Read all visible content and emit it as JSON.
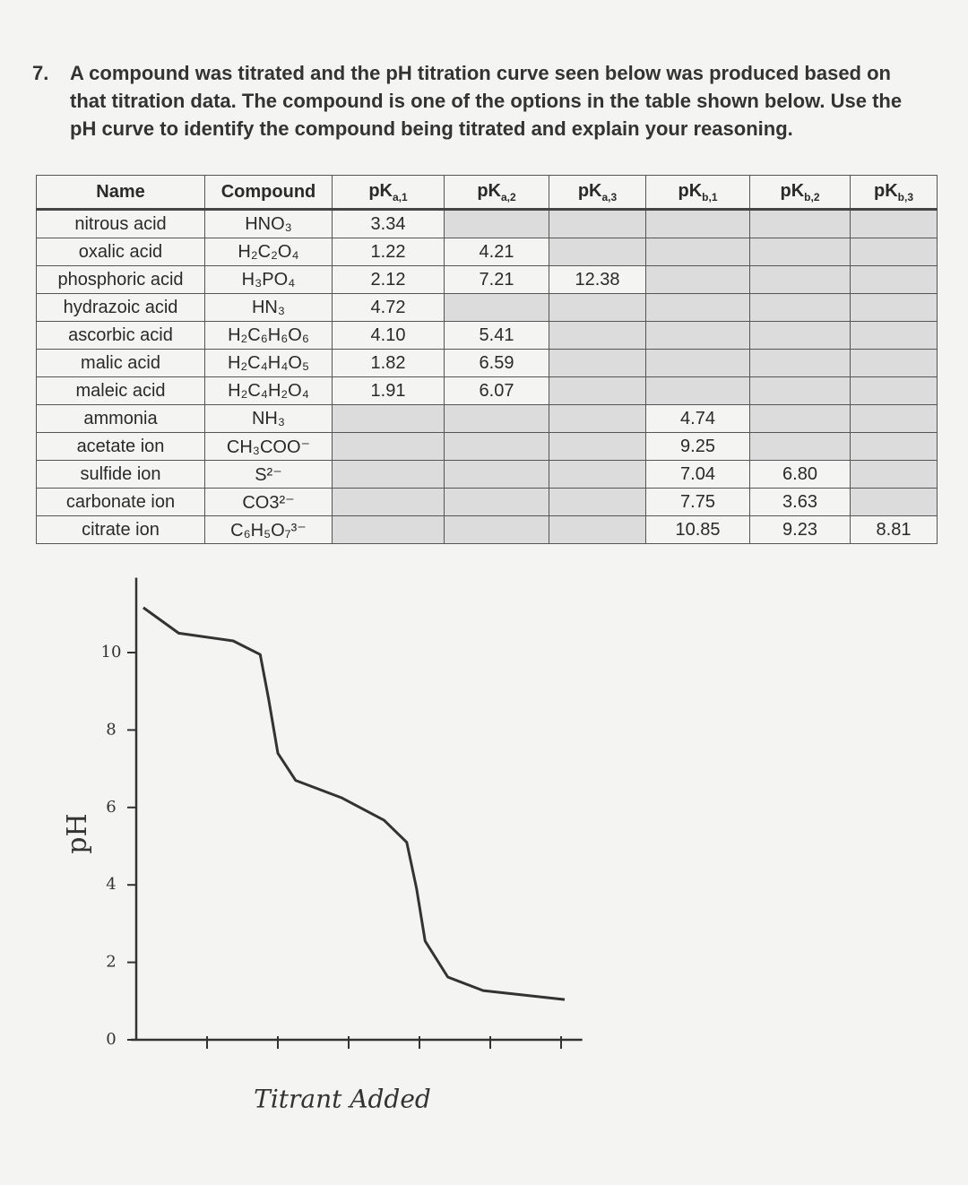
{
  "question": {
    "number": "7.",
    "text": "A compound was titrated and the pH titration curve seen below was produced based on that titration data. The compound is one of the options in the table shown below. Use the pH curve to identify the compound being titrated and explain your reasoning."
  },
  "table": {
    "headers": [
      "Name",
      "Compound",
      {
        "base": "pK",
        "sub": "a,1"
      },
      {
        "base": "pK",
        "sub": "a,2"
      },
      {
        "base": "pK",
        "sub": "a,3"
      },
      {
        "base": "pK",
        "sub": "b,1"
      },
      {
        "base": "pK",
        "sub": "b,2"
      },
      {
        "base": "pK",
        "sub": "b,3"
      }
    ],
    "rows": [
      [
        "nitrous acid",
        "HNO₃",
        "3.34",
        null,
        null,
        null,
        null,
        null
      ],
      [
        "oxalic acid",
        "H₂C₂O₄",
        "1.22",
        "4.21",
        null,
        null,
        null,
        null
      ],
      [
        "phosphoric acid",
        "H₃PO₄",
        "2.12",
        "7.21",
        "12.38",
        null,
        null,
        null
      ],
      [
        "hydrazoic acid",
        "HN₃",
        "4.72",
        null,
        null,
        null,
        null,
        null
      ],
      [
        "ascorbic acid",
        "H₂C₆H₆O₆",
        "4.10",
        "5.41",
        null,
        null,
        null,
        null
      ],
      [
        "malic acid",
        "H₂C₄H₄O₅",
        "1.82",
        "6.59",
        null,
        null,
        null,
        null
      ],
      [
        "maleic acid",
        "H₂C₄H₂O₄",
        "1.91",
        "6.07",
        null,
        null,
        null,
        null
      ],
      [
        "ammonia",
        "NH₃",
        null,
        null,
        null,
        "4.74",
        null,
        null
      ],
      [
        "acetate ion",
        "CH₃COO⁻",
        null,
        null,
        null,
        "9.25",
        null,
        null
      ],
      [
        "sulfide ion",
        "S²⁻",
        null,
        null,
        null,
        "7.04",
        "6.80",
        null
      ],
      [
        "carbonate ion",
        "CO3²⁻",
        null,
        null,
        null,
        "7.75",
        "3.63",
        null
      ],
      [
        "citrate ion",
        "C₆H₅O₇³⁻",
        null,
        null,
        null,
        "10.85",
        "9.23",
        "8.81"
      ]
    ]
  },
  "chart_data": {
    "type": "line",
    "x_label": "Titrant Added",
    "y_label": "pH",
    "color": "#333333",
    "x": [
      0.1,
      0.6,
      1.37,
      1.75,
      1.87,
      2.0,
      2.25,
      2.9,
      3.5,
      3.82,
      3.96,
      4.08,
      4.4,
      4.9,
      6.05
    ],
    "values": [
      11.16,
      10.5,
      10.3,
      9.95,
      8.8,
      7.4,
      6.7,
      6.25,
      5.67,
      5.1,
      3.9,
      2.55,
      1.62,
      1.27,
      1.04
    ],
    "xlim": [
      0,
      6.3
    ],
    "ylim": [
      0,
      11.7
    ],
    "xticks": [
      1,
      2,
      3,
      4,
      5,
      6
    ],
    "yticks": [
      0,
      2,
      4,
      6,
      8,
      10
    ]
  }
}
